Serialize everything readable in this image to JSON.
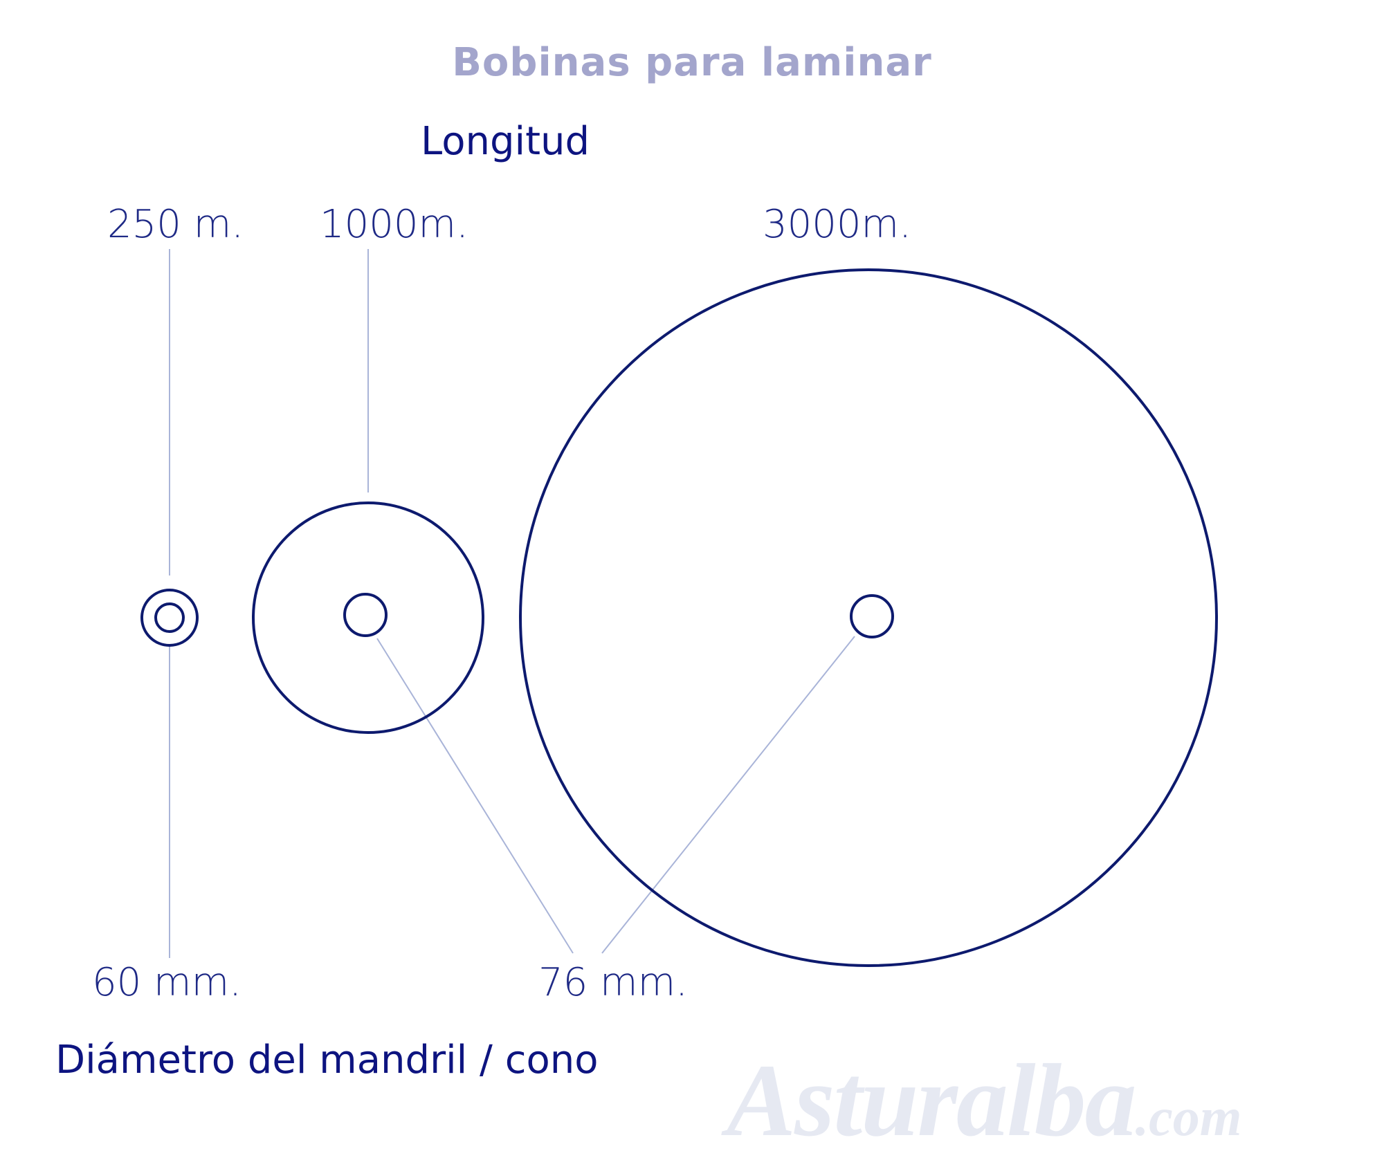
{
  "title": "Bobinas para laminar",
  "length_heading": "Longitud",
  "core_heading": "Diámetro del mandril / cono",
  "lengths": [
    "250 m.",
    "1000m.",
    "3000m."
  ],
  "core_diameters": [
    "60 mm.",
    "76 mm."
  ],
  "watermark": {
    "main": "Asturalba",
    "suffix": ".com"
  },
  "colors": {
    "title": "#a3a5cc",
    "stroke": "#0d1a6e",
    "leader": "#a9b4d8",
    "text": "#0d1480"
  }
}
